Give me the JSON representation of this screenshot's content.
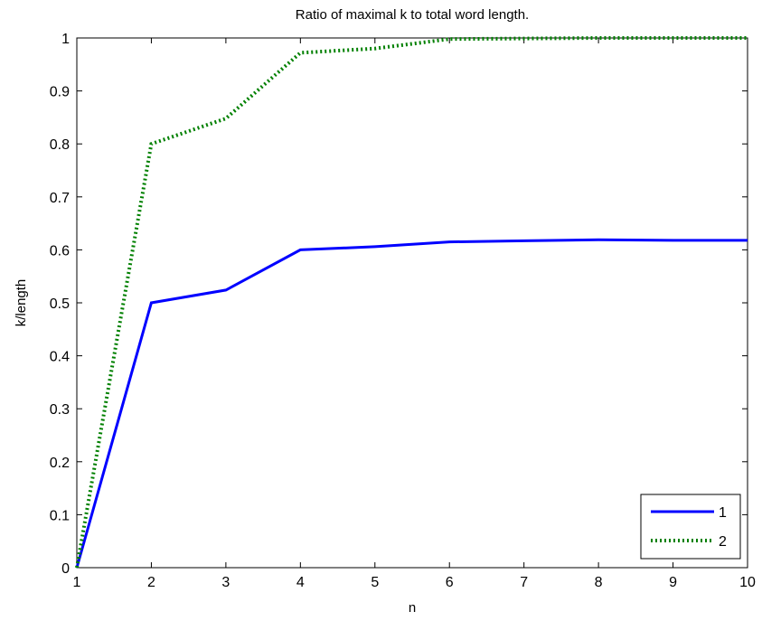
{
  "chart_data": {
    "type": "line",
    "title": "Ratio of maximal k to total word length.",
    "xlabel": "n",
    "ylabel": "k/length",
    "xlim": [
      1,
      10
    ],
    "ylim": [
      0,
      1
    ],
    "xticks": [
      "1",
      "2",
      "3",
      "4",
      "5",
      "6",
      "7",
      "8",
      "9",
      "10"
    ],
    "yticks": [
      "0",
      "0.1",
      "0.2",
      "0.3",
      "0.4",
      "0.5",
      "0.6",
      "0.7",
      "0.8",
      "0.9",
      "1"
    ],
    "grid": false,
    "legend_position": "bottom-right",
    "x": [
      1,
      2,
      3,
      4,
      5,
      6,
      7,
      8,
      9,
      10
    ],
    "series": [
      {
        "name": "1",
        "color": "#0000ff",
        "line_style": "solid",
        "values": [
          0,
          0.5,
          0.524,
          0.6,
          0.606,
          0.615,
          0.617,
          0.619,
          0.618,
          0.618
        ]
      },
      {
        "name": "2",
        "color": "#008000",
        "line_style": "dotted",
        "values": [
          0,
          0.8,
          0.848,
          0.972,
          0.98,
          0.998,
          0.999,
          1.0,
          1.0,
          1.0
        ]
      }
    ]
  }
}
